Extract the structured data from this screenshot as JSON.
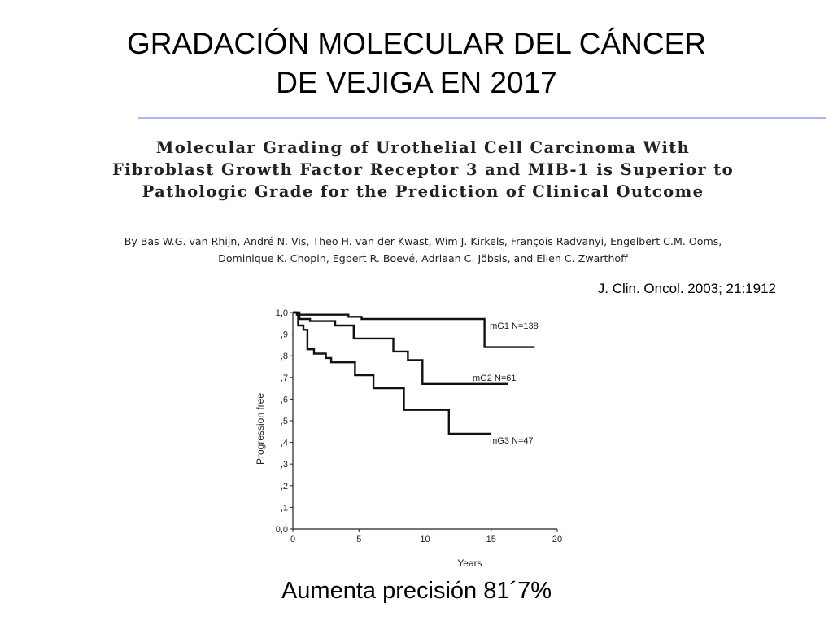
{
  "slide": {
    "title_lines": [
      "GRADACIÓN MOLECULAR DEL CÁNCER",
      "DE VEJIGA EN 2017"
    ],
    "paper_title_lines": [
      "Molecular Grading of Urothelial Cell Carcinoma With",
      "Fibroblast Growth Factor Receptor 3 and MIB-1 is Superior to",
      "Pathologic Grade for the Prediction of Clinical Outcome"
    ],
    "authors_lines": [
      "By Bas W.G. van Rhijn, André N. Vis, Theo H. van der Kwast, Wim J. Kirkels, François Radvanyi, Engelbert C.M. Ooms,",
      "Dominique K. Chopin, Egbert R. Boevé, Adriaan C. Jöbsis, and Ellen C. Zwarthoff"
    ],
    "citation": "J. Clin. Oncol. 2003; 21:1912",
    "caption": "Aumenta precisión 81´7%",
    "accent_color": "#a9b9ec"
  },
  "chart_data": {
    "type": "line",
    "step": true,
    "xlabel": "Years",
    "ylabel": "Progression free",
    "xlim": [
      0,
      20
    ],
    "ylim": [
      0,
      1
    ],
    "x_ticks": [
      "0",
      "5",
      "10",
      "15",
      "20"
    ],
    "y_ticks": [
      "0,0",
      ",1",
      ",2",
      ",3",
      ",4",
      ",5",
      ",6",
      ",7",
      ",8",
      ",9",
      "1,0"
    ],
    "grid": false,
    "series": [
      {
        "name": "mG1",
        "label": "mG1  N=138",
        "points": [
          [
            0,
            1.0
          ],
          [
            0.3,
            1.0
          ],
          [
            0.3,
            0.99
          ],
          [
            4.2,
            0.99
          ],
          [
            4.2,
            0.98
          ],
          [
            5.2,
            0.98
          ],
          [
            5.2,
            0.97
          ],
          [
            14.5,
            0.97
          ],
          [
            14.5,
            0.84
          ],
          [
            18.3,
            0.84
          ]
        ]
      },
      {
        "name": "mG2",
        "label": "mG2  N=61",
        "points": [
          [
            0,
            1.0
          ],
          [
            0.5,
            1.0
          ],
          [
            0.5,
            0.97
          ],
          [
            1.3,
            0.97
          ],
          [
            1.3,
            0.96
          ],
          [
            3.2,
            0.96
          ],
          [
            3.2,
            0.94
          ],
          [
            4.6,
            0.94
          ],
          [
            4.6,
            0.88
          ],
          [
            7.6,
            0.88
          ],
          [
            7.6,
            0.82
          ],
          [
            8.7,
            0.82
          ],
          [
            8.7,
            0.78
          ],
          [
            9.8,
            0.78
          ],
          [
            9.8,
            0.67
          ],
          [
            16.3,
            0.67
          ]
        ]
      },
      {
        "name": "mG3",
        "label": "mG3  N=47",
        "points": [
          [
            0,
            1.0
          ],
          [
            0.4,
            1.0
          ],
          [
            0.4,
            0.94
          ],
          [
            0.8,
            0.94
          ],
          [
            0.8,
            0.92
          ],
          [
            1.1,
            0.92
          ],
          [
            1.1,
            0.83
          ],
          [
            1.6,
            0.83
          ],
          [
            1.6,
            0.81
          ],
          [
            2.5,
            0.81
          ],
          [
            2.5,
            0.79
          ],
          [
            2.9,
            0.79
          ],
          [
            2.9,
            0.77
          ],
          [
            4.7,
            0.77
          ],
          [
            4.7,
            0.71
          ],
          [
            6.1,
            0.71
          ],
          [
            6.1,
            0.65
          ],
          [
            8.4,
            0.65
          ],
          [
            8.4,
            0.55
          ],
          [
            11.8,
            0.55
          ],
          [
            11.8,
            0.44
          ],
          [
            15.0,
            0.44
          ]
        ]
      }
    ],
    "annotation_positions": [
      {
        "series": "mG1",
        "x": 14.9,
        "y": 0.94
      },
      {
        "series": "mG2",
        "x": 13.6,
        "y": 0.7
      },
      {
        "series": "mG3",
        "x": 14.9,
        "y": 0.41
      }
    ],
    "colors": {
      "line": "#111111",
      "axis": "#222222"
    }
  }
}
